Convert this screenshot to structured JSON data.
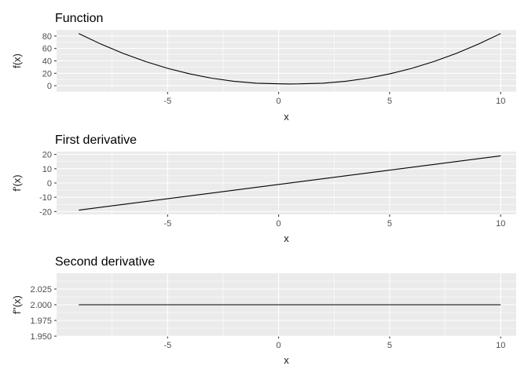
{
  "chart_data": [
    {
      "type": "line",
      "title": "Function",
      "xlabel": "x",
      "ylabel": "f(x)",
      "xlim": [
        -10,
        10.7
      ],
      "ylim": [
        -10,
        90
      ],
      "x_ticks": [
        -5,
        0,
        5,
        10
      ],
      "x_tick_labels": [
        "-5",
        "0",
        "5",
        "10"
      ],
      "y_ticks": [
        0,
        20,
        40,
        60,
        80
      ],
      "y_tick_labels": [
        "0",
        "20",
        "40",
        "60",
        "80"
      ],
      "grid": true,
      "colors": {
        "line": "#000000",
        "panel": "#ebebeb",
        "grid": "#ffffff"
      },
      "series": [
        {
          "x": [
            -9,
            -8,
            -7,
            -6,
            -5,
            -4,
            -3,
            -2,
            -1,
            0,
            0.5,
            1,
            2,
            3,
            4,
            5,
            6,
            7,
            8,
            9,
            10
          ],
          "values": [
            84,
            67,
            52,
            39,
            28,
            19,
            12,
            7,
            4,
            3,
            2.8,
            3,
            4,
            7,
            12,
            19,
            28,
            39,
            52,
            67,
            84
          ]
        }
      ]
    },
    {
      "type": "line",
      "title": "First derivative",
      "xlabel": "x",
      "ylabel": "f'(x)",
      "xlim": [
        -10,
        10.7
      ],
      "ylim": [
        -22,
        22
      ],
      "x_ticks": [
        -5,
        0,
        5,
        10
      ],
      "x_tick_labels": [
        "-5",
        "0",
        "5",
        "10"
      ],
      "y_ticks": [
        -20,
        -10,
        0,
        10,
        20
      ],
      "y_tick_labels": [
        "-20",
        "-10",
        "0",
        "10",
        "20"
      ],
      "grid": true,
      "colors": {
        "line": "#000000",
        "panel": "#ebebeb",
        "grid": "#ffffff"
      },
      "series": [
        {
          "x": [
            -9,
            10
          ],
          "values": [
            -19,
            19
          ]
        }
      ]
    },
    {
      "type": "line",
      "title": "Second derivative",
      "xlabel": "x",
      "ylabel": "f''(x)",
      "xlim": [
        -10,
        10.7
      ],
      "ylim": [
        1.95,
        2.05
      ],
      "x_ticks": [
        -5,
        0,
        5,
        10
      ],
      "x_tick_labels": [
        "-5",
        "0",
        "5",
        "10"
      ],
      "y_ticks": [
        1.95,
        1.975,
        2.0,
        2.025
      ],
      "y_tick_labels": [
        "1.950",
        "1.975",
        "2.000",
        "2.025"
      ],
      "grid": true,
      "colors": {
        "line": "#000000",
        "panel": "#ebebeb",
        "grid": "#ffffff"
      },
      "series": [
        {
          "x": [
            -9,
            10
          ],
          "values": [
            2.0,
            2.0
          ]
        }
      ]
    }
  ]
}
